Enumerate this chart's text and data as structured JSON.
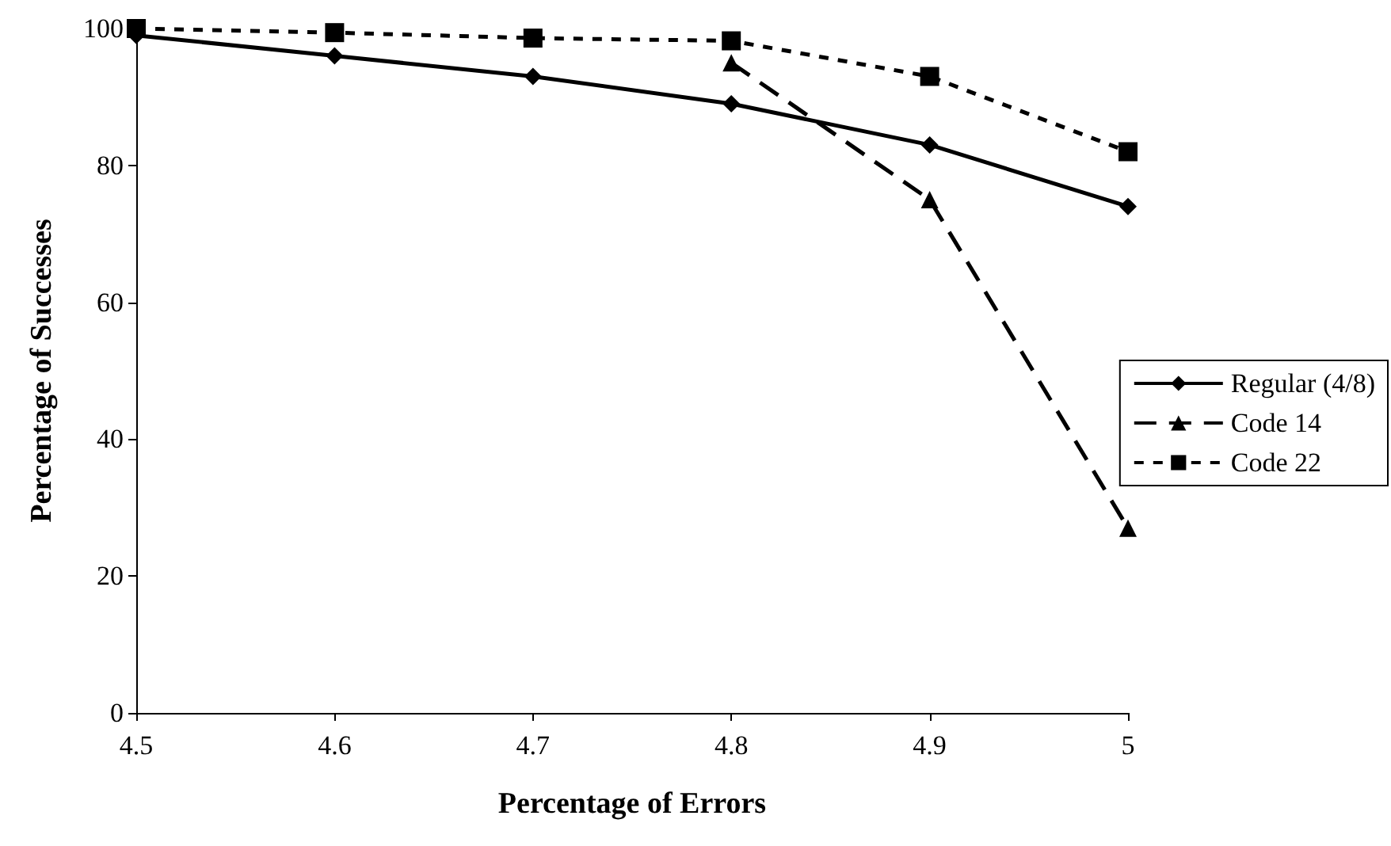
{
  "chart_data": {
    "type": "line",
    "xlabel": "Percentage of Errors",
    "ylabel": "Percentage of Successes",
    "x": [
      4.5,
      4.6,
      4.7,
      4.8,
      4.9,
      5
    ],
    "series": [
      {
        "name": "Regular (4/8)",
        "color": "#000000",
        "marker": "diamond",
        "line_style": "solid",
        "values": [
          99,
          96,
          93,
          89,
          83,
          74
        ]
      },
      {
        "name": "Code 14",
        "color": "#000000",
        "marker": "triangle",
        "line_style": "dashed",
        "values": [
          null,
          null,
          null,
          95,
          75,
          27
        ]
      },
      {
        "name": "Code 22",
        "color": "#000000",
        "marker": "square",
        "line_style": "dashed",
        "values": [
          100,
          99.4,
          98.6,
          98.2,
          93,
          82
        ]
      }
    ],
    "xlim": [
      4.5,
      5
    ],
    "xticks": [
      4.5,
      4.6,
      4.7,
      4.8,
      4.9,
      5
    ],
    "ylim": [
      0,
      100
    ],
    "yticks": [
      0,
      20,
      40,
      60,
      80,
      100
    ],
    "grid": false,
    "legend": "right"
  }
}
